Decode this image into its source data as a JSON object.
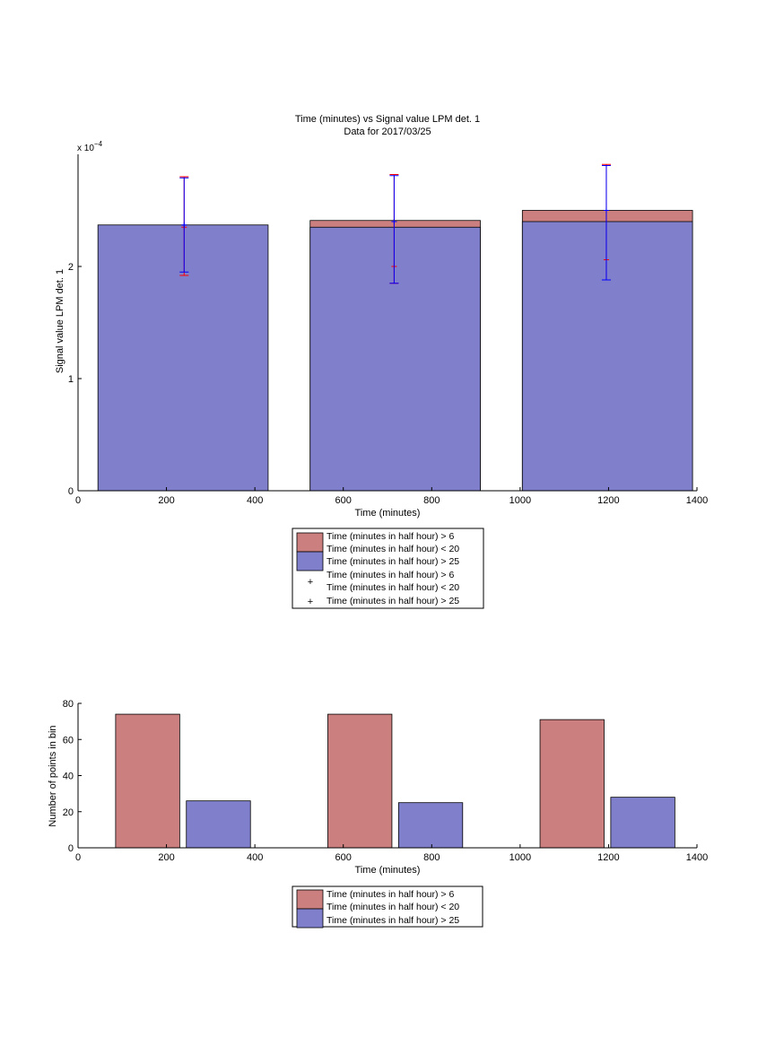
{
  "colors": {
    "red_bar": "#cc7f7f",
    "blue_bar": "#7f7fcc",
    "err_red": "#ff0000",
    "err_blue": "#0000ff"
  },
  "top": {
    "title_line1": "Time (minutes) vs Signal value LPM det. 1",
    "title_line2": "Data for 2017/03/25",
    "exponent_base": "x 10",
    "exponent_power": "−4"
  },
  "legend_top": {
    "entries": [
      "Time (minutes in half hour) > 6",
      "Time (minutes in half hour) < 20",
      "Time (minutes in half hour) > 25",
      "Time (minutes in half hour) > 6",
      "Time (minutes in half hour) < 20",
      "Time (minutes in half hour) > 25"
    ]
  },
  "legend_bottom": {
    "entries": [
      "Time (minutes in half hour) > 6",
      "Time (minutes in half hour) < 20",
      "Time (minutes in half hour) > 25"
    ]
  },
  "chart_data": [
    {
      "type": "bar",
      "stacked": true,
      "title": "Time (minutes) vs Signal value LPM det. 1\nData for 2017/03/25",
      "xlabel": "Time (minutes)",
      "ylabel": "Signal value LPM det. 1",
      "y_scale_factor": "x 10^-4",
      "xlim": [
        0,
        1400
      ],
      "ylim": [
        0,
        0.0003
      ],
      "xticks": [
        0,
        200,
        400,
        600,
        800,
        1000,
        1200,
        1400
      ],
      "yticks": [
        0,
        1,
        2
      ],
      "grid": false,
      "bars": [
        {
          "x_start": 45,
          "x_end": 430,
          "center": 240,
          "blue": 0.000237,
          "red": 0.000237
        },
        {
          "x_start": 525,
          "x_end": 910,
          "center": 715,
          "blue": 0.000235,
          "red": 0.000241
        },
        {
          "x_start": 1005,
          "x_end": 1390,
          "center": 1195,
          "blue": 0.00024,
          "red": 0.00025
        }
      ],
      "errorbars": [
        {
          "x": 240,
          "red_center": 0.000235,
          "red_low": 0.000192,
          "red_high": 0.00028,
          "blue_center": 0.000237,
          "blue_low": 0.000195,
          "blue_high": 0.000279
        },
        {
          "x": 715,
          "red_center": 0.0002,
          "red_low": 0.000185,
          "red_high": 0.000282,
          "blue_center": 0.00024,
          "blue_low": 0.000185,
          "blue_high": 0.000281
        },
        {
          "x": 1195,
          "red_center": 0.000206,
          "red_low": 0.000188,
          "red_high": 0.000291,
          "blue_center": 0.00025,
          "blue_low": 0.000188,
          "blue_high": 0.00029
        }
      ]
    },
    {
      "type": "bar",
      "xlabel": "Time (minutes)",
      "ylabel": "Number of points in bin",
      "xlim": [
        0,
        1400
      ],
      "ylim": [
        0,
        80
      ],
      "xticks": [
        0,
        200,
        400,
        600,
        800,
        1000,
        1200,
        1400
      ],
      "yticks": [
        0,
        20,
        40,
        60,
        80
      ],
      "grid": false,
      "bars": [
        {
          "series": "red",
          "x_start": 85,
          "x_end": 230,
          "value": 74
        },
        {
          "series": "blue",
          "x_start": 245,
          "x_end": 390,
          "value": 26
        },
        {
          "series": "red",
          "x_start": 565,
          "x_end": 710,
          "value": 74
        },
        {
          "series": "blue",
          "x_start": 725,
          "x_end": 870,
          "value": 25
        },
        {
          "series": "red",
          "x_start": 1045,
          "x_end": 1190,
          "value": 71
        },
        {
          "series": "blue",
          "x_start": 1205,
          "x_end": 1350,
          "value": 28
        }
      ]
    }
  ]
}
